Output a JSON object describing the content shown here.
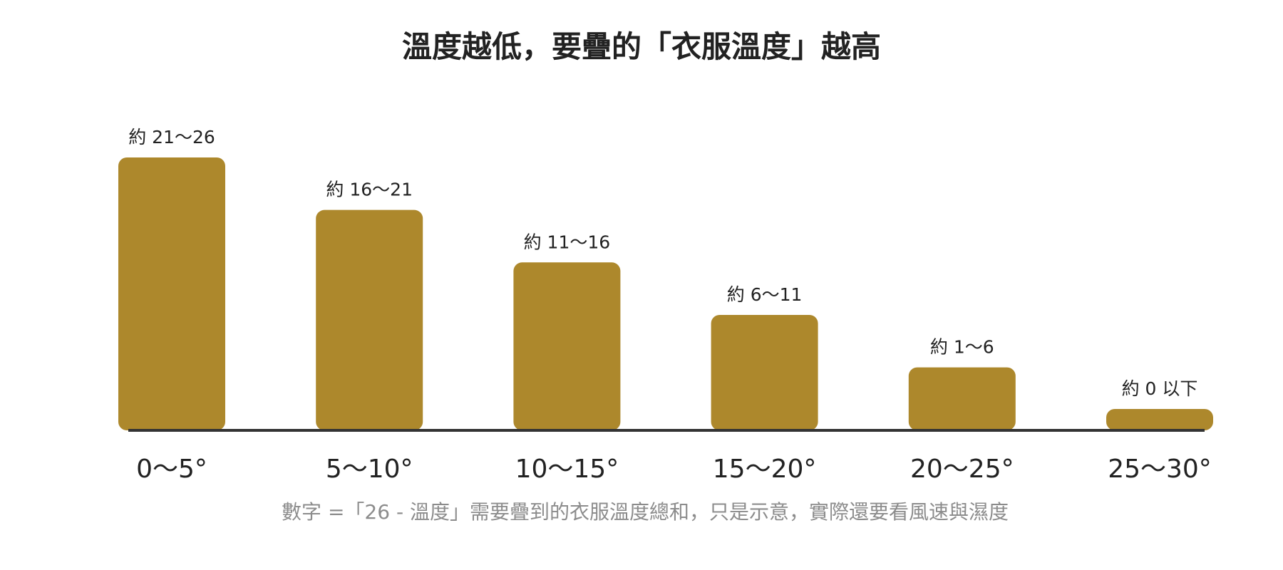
{
  "chart_data": {
    "type": "bar",
    "title": "溫度越低，要疊的「衣服溫度」越高",
    "categories": [
      "0～5°",
      "5～10°",
      "10～15°",
      "15～20°",
      "20～25°",
      "25～30°"
    ],
    "values": [
      26,
      21,
      16,
      11,
      6,
      1
    ],
    "data_labels": [
      "約 21～26",
      "約 16～21",
      "約 11～16",
      "約 6～11",
      "約 1～6",
      "約 0 以下"
    ],
    "xlabel": "",
    "ylabel": "",
    "ylim": [
      0,
      26
    ],
    "grid": false,
    "colors": {
      "bar": "#ad882c",
      "axis": "#333333"
    },
    "note": "數字 =「26 - 溫度」需要疊到的衣服溫度總和，只是示意，實際還要看風速與濕度"
  }
}
